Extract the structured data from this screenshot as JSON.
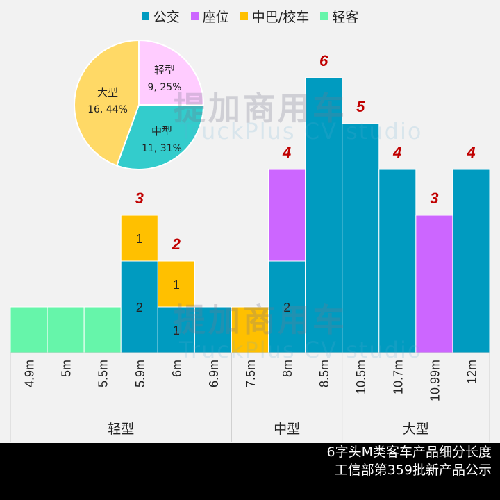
{
  "chart_data": [
    {
      "type": "bar",
      "stacked": true,
      "categories": [
        "4.9m",
        "5m",
        "5.5m",
        "5.9m",
        "6m",
        "6.9m",
        "7.5m",
        "8m",
        "8.5m",
        "10.5m",
        "10.7m",
        "10.99m",
        "12m"
      ],
      "groups": [
        {
          "label": "轻型",
          "categories": [
            "4.9m",
            "5m",
            "5.5m",
            "5.9m",
            "6m",
            "6.9m"
          ]
        },
        {
          "label": "中型",
          "categories": [
            "7.5m",
            "8m",
            "8.5m"
          ]
        },
        {
          "label": "大型",
          "categories": [
            "10.5m",
            "10.7m",
            "10.99m",
            "12m"
          ]
        }
      ],
      "series": [
        {
          "name": "公交",
          "color": "#009BC0",
          "values": [
            0,
            0,
            0,
            2,
            1,
            1,
            0,
            2,
            6,
            5,
            4,
            0,
            4
          ],
          "labels_shown": [
            false,
            false,
            false,
            true,
            true,
            false,
            false,
            true,
            false,
            false,
            false,
            false,
            false
          ]
        },
        {
          "name": "座位",
          "color": "#CC66FF",
          "values": [
            0,
            0,
            0,
            0,
            0,
            0,
            0,
            2,
            0,
            0,
            0,
            3,
            0
          ],
          "labels_shown": [
            false,
            false,
            false,
            false,
            false,
            false,
            false,
            false,
            false,
            false,
            false,
            false,
            false
          ]
        },
        {
          "name": "中巴/校车",
          "color": "#FFC000",
          "values": [
            0,
            0,
            0,
            1,
            1,
            0,
            1,
            0,
            0,
            0,
            0,
            0,
            0
          ],
          "labels_shown": [
            false,
            false,
            false,
            true,
            true,
            false,
            false,
            false,
            false,
            false,
            false,
            false,
            false
          ]
        },
        {
          "name": "轻客",
          "color": "#66F5AA",
          "values": [
            1,
            1,
            1,
            0,
            0,
            0,
            0,
            0,
            0,
            0,
            0,
            0,
            0
          ],
          "labels_shown": [
            false,
            false,
            false,
            false,
            false,
            false,
            false,
            false,
            false,
            false,
            false,
            false,
            false
          ]
        }
      ],
      "totals": [
        "",
        "",
        "",
        "3",
        "2",
        "",
        "",
        "4",
        "6",
        "5",
        "4",
        "3",
        "4"
      ],
      "total_label_color": "#C00000",
      "ylim": [
        0,
        6.5
      ],
      "grid": false,
      "legend": "top"
    },
    {
      "type": "pie",
      "slices": [
        {
          "label": "轻型",
          "value": 9,
          "percent": "25%",
          "text": "9, 25%",
          "color": "#FFCCFF"
        },
        {
          "label": "中型",
          "value": 11,
          "percent": "31%",
          "text": "11, 31%",
          "color": "#33CCCC"
        },
        {
          "label": "大型",
          "value": 16,
          "percent": "44%",
          "text": "16, 44%",
          "color": "#FFD966"
        }
      ]
    }
  ],
  "footer": {
    "line1": "6字头M类客车产品细分长度",
    "line2": "工信部第359批新产品公示"
  },
  "watermark": {
    "cn": "提加商用车",
    "en": "TruckPlus CV studio"
  }
}
